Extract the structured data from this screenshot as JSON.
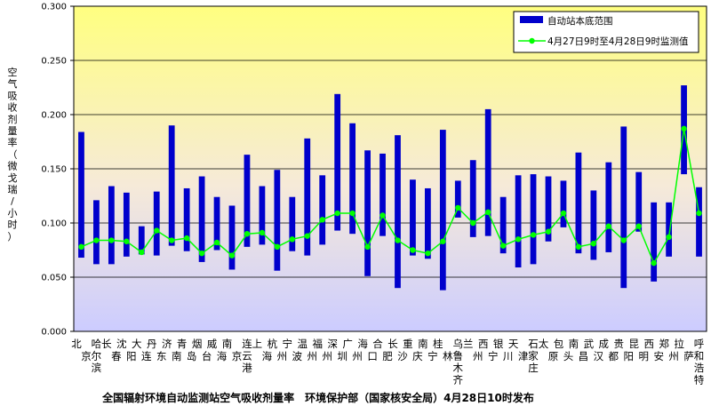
{
  "chart_data": {
    "type": "bar",
    "title": "全国辐射环境自动监测站空气吸收剂量率　环境保护部（国家核安全局）4月28日10时发布",
    "ylabel": "空气吸收剂量率（微戈瑞/小时）",
    "ylim": [
      0,
      0.3
    ],
    "y_ticks": [
      "0.000",
      "0.050",
      "0.100",
      "0.150",
      "0.200",
      "0.250",
      "0.300"
    ],
    "grid": true,
    "legend_position": "top-right",
    "categories": [
      "北京",
      "哈尔滨",
      "长春",
      "沈阳",
      "大连",
      "丹东",
      "济南",
      "青岛",
      "烟台",
      "威海",
      "南京",
      "连云港",
      "上海",
      "杭州",
      "宁波",
      "温州",
      "福州",
      "深圳",
      "广州",
      "海口",
      "合肥",
      "长沙",
      "重庆",
      "南宁",
      "桂林",
      "乌鲁木齐",
      "兰州",
      "西宁",
      "银川",
      "天津",
      "石家庄",
      "太原",
      "包头",
      "南昌",
      "武汉",
      "成都",
      "贵阳",
      "昆明",
      "西安",
      "郑州",
      "拉萨",
      "呼和浩特"
    ],
    "series": [
      {
        "name": "自动站本底范围",
        "kind": "range-bar",
        "color": "#0000cc",
        "low": [
          0.068,
          0.062,
          0.062,
          0.069,
          0.071,
          0.07,
          0.079,
          0.074,
          0.064,
          0.075,
          0.057,
          0.078,
          0.08,
          0.056,
          0.074,
          0.07,
          0.08,
          0.093,
          0.09,
          0.051,
          0.088,
          0.04,
          0.07,
          0.067,
          0.038,
          0.105,
          0.087,
          0.088,
          0.072,
          0.059,
          0.062,
          0.083,
          0.096,
          0.072,
          0.066,
          0.073,
          0.04,
          0.092,
          0.046,
          0.069,
          0.145,
          0.069
        ],
        "high": [
          0.184,
          0.121,
          0.134,
          0.128,
          0.097,
          0.129,
          0.19,
          0.132,
          0.143,
          0.124,
          0.116,
          0.163,
          0.134,
          0.149,
          0.124,
          0.178,
          0.144,
          0.219,
          0.192,
          0.167,
          0.164,
          0.181,
          0.14,
          0.132,
          0.186,
          0.139,
          0.158,
          0.205,
          0.124,
          0.144,
          0.145,
          0.143,
          0.139,
          0.165,
          0.13,
          0.156,
          0.189,
          0.147,
          0.119,
          0.119,
          0.227,
          0.133
        ]
      },
      {
        "name": "4月27日9时至4月28日9时监测值",
        "kind": "line",
        "color": "#00ff00",
        "values": [
          0.078,
          0.084,
          0.084,
          0.083,
          0.073,
          0.093,
          0.084,
          0.086,
          0.072,
          0.082,
          0.07,
          0.09,
          0.091,
          0.078,
          0.085,
          0.088,
          0.103,
          0.109,
          0.109,
          0.078,
          0.107,
          0.084,
          0.075,
          0.072,
          0.083,
          0.114,
          0.1,
          0.11,
          0.079,
          0.085,
          0.089,
          0.092,
          0.109,
          0.078,
          0.081,
          0.097,
          0.084,
          0.097,
          0.063,
          0.087,
          0.187,
          0.109
        ]
      }
    ]
  }
}
